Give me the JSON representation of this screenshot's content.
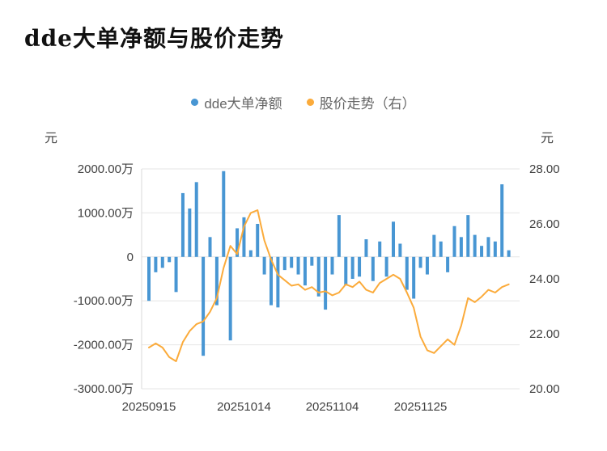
{
  "title": "dde大单净额与股价走势",
  "legend": [
    {
      "label": "dde大单净额",
      "color": "#4896d3"
    },
    {
      "label": "股价走势（右）",
      "color": "#fbab3b"
    }
  ],
  "left_axis_unit": "元",
  "right_axis_unit": "元",
  "chart_data": {
    "type": "bar+line",
    "title": "dde大单净额与股价走势",
    "grid": true,
    "legend_position": "top",
    "bar_series": {
      "name": "dde大单净额",
      "unit": "万元",
      "axis": "left",
      "color": "#4896d3",
      "values": [
        -1000,
        -350,
        -250,
        -120,
        -800,
        1450,
        1100,
        1700,
        -2250,
        450,
        -1100,
        1950,
        -1900,
        650,
        900,
        150,
        750,
        -400,
        -1100,
        -1150,
        -300,
        -250,
        -400,
        -650,
        -200,
        -900,
        -1200,
        -400,
        950,
        -650,
        -500,
        -450,
        400,
        -550,
        350,
        -450,
        800,
        300,
        -750,
        -950,
        -250,
        -400,
        500,
        350,
        -350,
        700,
        450,
        950,
        500,
        250,
        450,
        350,
        1650,
        150
      ]
    },
    "line_series": {
      "name": "股价走势",
      "unit": "元",
      "axis": "right",
      "color": "#fbab3b",
      "values": [
        21.5,
        21.65,
        21.5,
        21.15,
        21.0,
        21.7,
        22.1,
        22.35,
        22.45,
        22.8,
        23.3,
        24.4,
        25.2,
        24.9,
        25.9,
        26.4,
        26.5,
        25.4,
        24.7,
        24.15,
        23.95,
        23.75,
        23.8,
        23.6,
        23.7,
        23.5,
        23.55,
        23.4,
        23.5,
        23.8,
        23.7,
        23.9,
        23.6,
        23.5,
        23.85,
        24.0,
        24.15,
        24.0,
        23.5,
        22.95,
        21.9,
        21.4,
        21.3,
        21.55,
        21.8,
        21.6,
        22.3,
        23.3,
        23.15,
        23.35,
        23.6,
        23.5,
        23.7,
        23.8
      ]
    },
    "left_axis": {
      "unit": "元",
      "range": [
        -3000,
        2000
      ],
      "ticks": [
        {
          "label": "2000.00万",
          "value": 2000
        },
        {
          "label": "1000.00万",
          "value": 1000
        },
        {
          "label": "0",
          "value": 0
        },
        {
          "label": "-1000.00万",
          "value": -1000
        },
        {
          "label": "-2000.00万",
          "value": -2000
        },
        {
          "label": "-3000.00万",
          "value": -3000
        }
      ]
    },
    "right_axis": {
      "unit": "元",
      "range": [
        20,
        28
      ],
      "ticks": [
        {
          "label": "28.00",
          "value": 28
        },
        {
          "label": "26.00",
          "value": 26
        },
        {
          "label": "24.00",
          "value": 24
        },
        {
          "label": "22.00",
          "value": 22
        },
        {
          "label": "20.00",
          "value": 20
        }
      ]
    },
    "x_ticks": [
      {
        "label": "20250915",
        "index": 0
      },
      {
        "label": "20251014",
        "index": 14
      },
      {
        "label": "20251104",
        "index": 27
      },
      {
        "label": "20251125",
        "index": 40
      }
    ]
  }
}
